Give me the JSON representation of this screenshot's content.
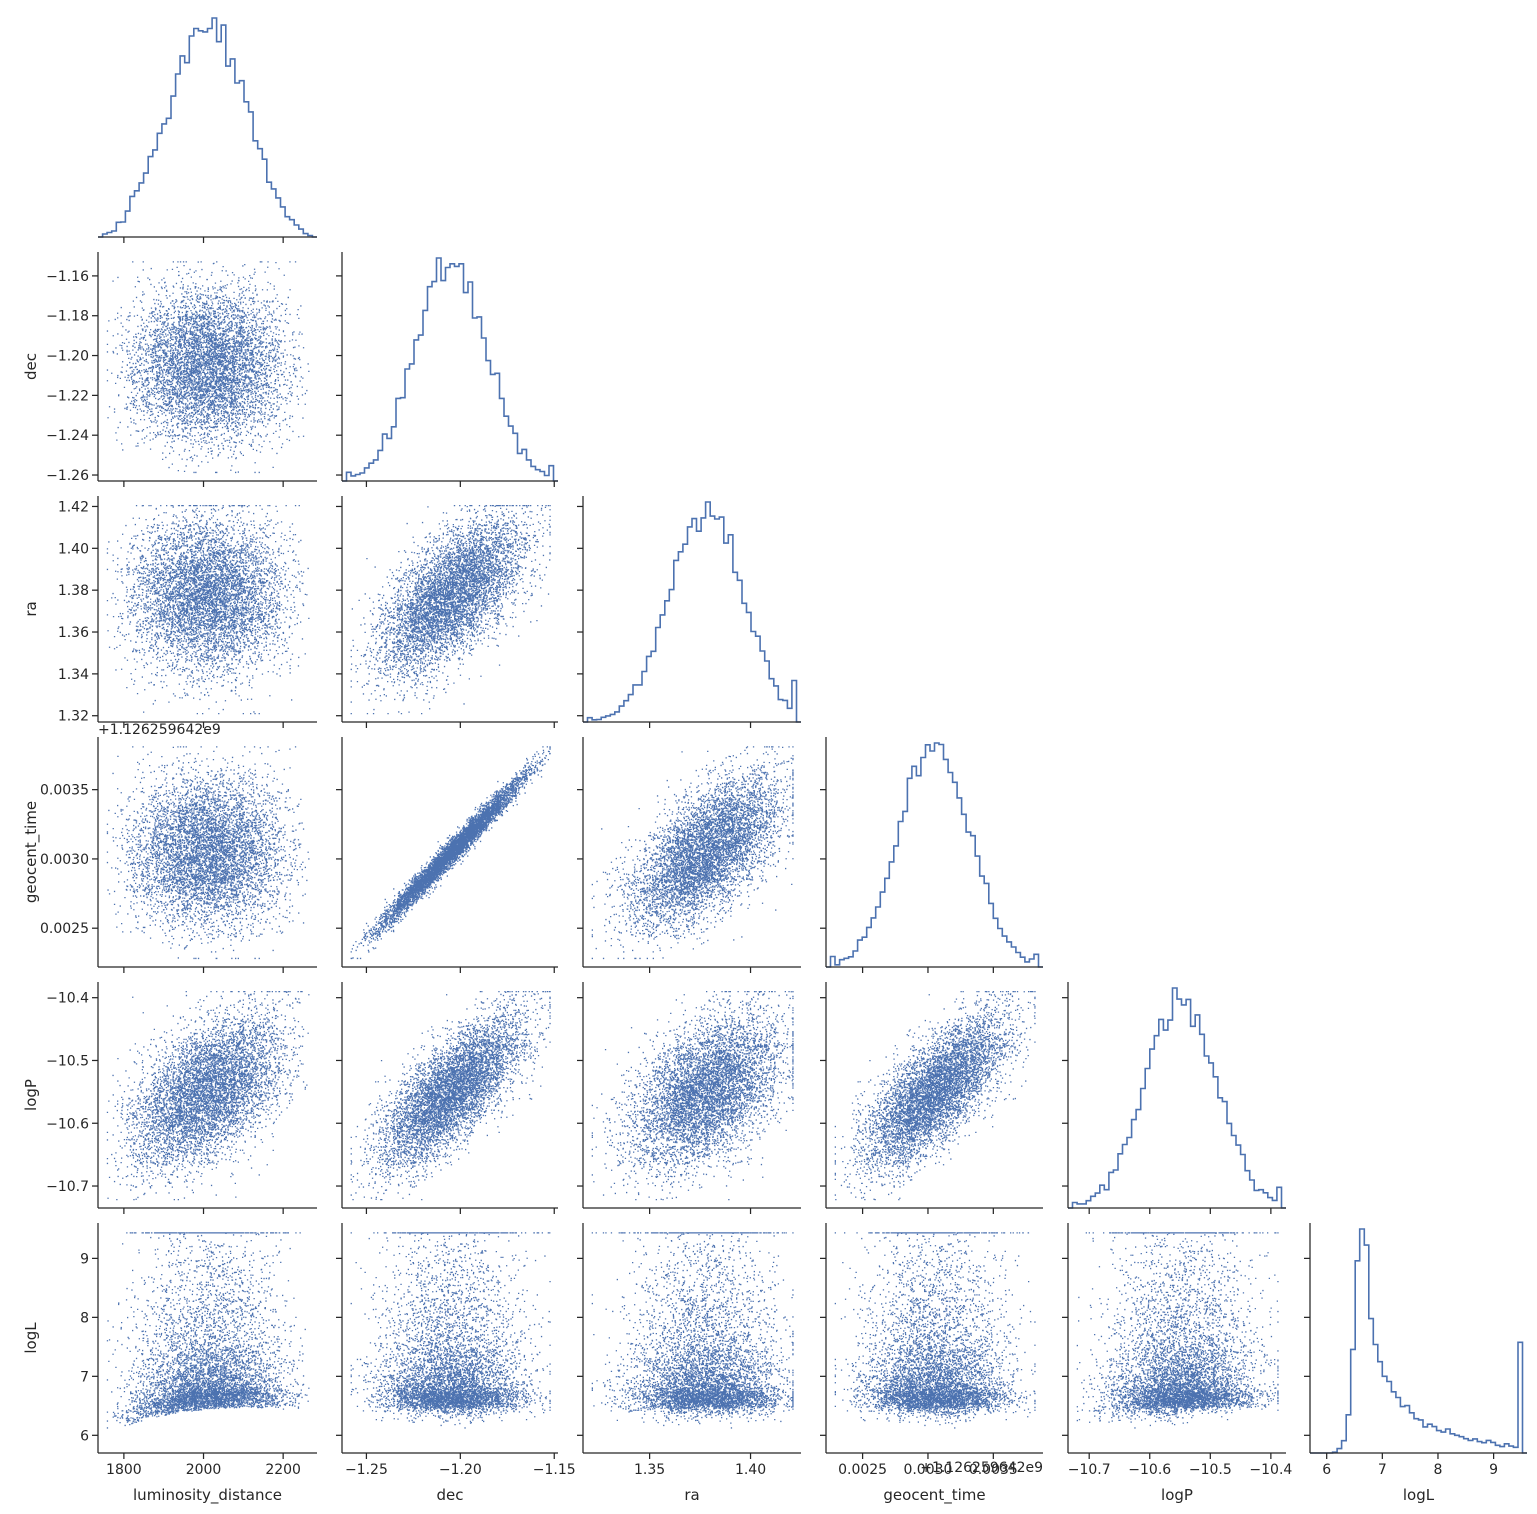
{
  "chart_data": {
    "type": "scatter",
    "layout": "corner-pairplot",
    "variables": [
      {
        "name": "luminosity_distance",
        "range": [
          1735,
          2285
        ],
        "ticks": [
          1800,
          2000,
          2200
        ],
        "tick_labels": [
          "1800",
          "2000",
          "2200"
        ]
      },
      {
        "name": "dec",
        "range": [
          -1.263,
          -1.148
        ],
        "ticks": [
          -1.26,
          -1.24,
          -1.22,
          -1.2,
          -1.18,
          -1.16
        ],
        "tick_labels": [
          "−1.26",
          "−1.24",
          "−1.22",
          "−1.20",
          "−1.18",
          "−1.16"
        ],
        "x_ticks": [
          -1.25,
          -1.2,
          -1.15
        ],
        "x_tick_labels": [
          "−1.25",
          "−1.20",
          "−1.15"
        ]
      },
      {
        "name": "ra",
        "range": [
          1.317,
          1.425
        ],
        "ticks": [
          1.32,
          1.34,
          1.36,
          1.38,
          1.4,
          1.42
        ],
        "tick_labels": [
          "1.32",
          "1.34",
          "1.36",
          "1.38",
          "1.40",
          "1.42"
        ],
        "x_ticks": [
          1.35,
          1.4
        ],
        "x_tick_labels": [
          "1.35",
          "1.40"
        ]
      },
      {
        "name": "geocent_time",
        "range": [
          0.00222,
          0.00388
        ],
        "ticks": [
          0.0025,
          0.003,
          0.0035
        ],
        "tick_labels": [
          "0.0025",
          "0.0030",
          "0.0035"
        ],
        "offset_text": "+1.126259642e9"
      },
      {
        "name": "logP",
        "range": [
          -10.735,
          -10.375
        ],
        "ticks": [
          -10.7,
          -10.6,
          -10.5,
          -10.4
        ],
        "tick_labels": [
          "−10.7",
          "−10.6",
          "−10.5",
          "−10.4"
        ]
      },
      {
        "name": "logL",
        "range": [
          5.7,
          9.6
        ],
        "ticks": [
          6,
          7,
          8,
          9
        ],
        "tick_labels": [
          "6",
          "7",
          "8",
          "9"
        ]
      }
    ],
    "diagonal": "step-histogram",
    "off_diagonal": "scatter",
    "n_samples": 12000,
    "correlations": {
      "dec|ra": 0.62,
      "dec|geocent_time": 0.985,
      "ra|geocent_time": 0.65,
      "luminosity_distance|logP": 0.55,
      "dec|logP": 0.8,
      "ra|logP": 0.5,
      "geocent_time|logP": 0.78
    },
    "color": "#4c72b0",
    "grid": false,
    "legend": "none"
  }
}
